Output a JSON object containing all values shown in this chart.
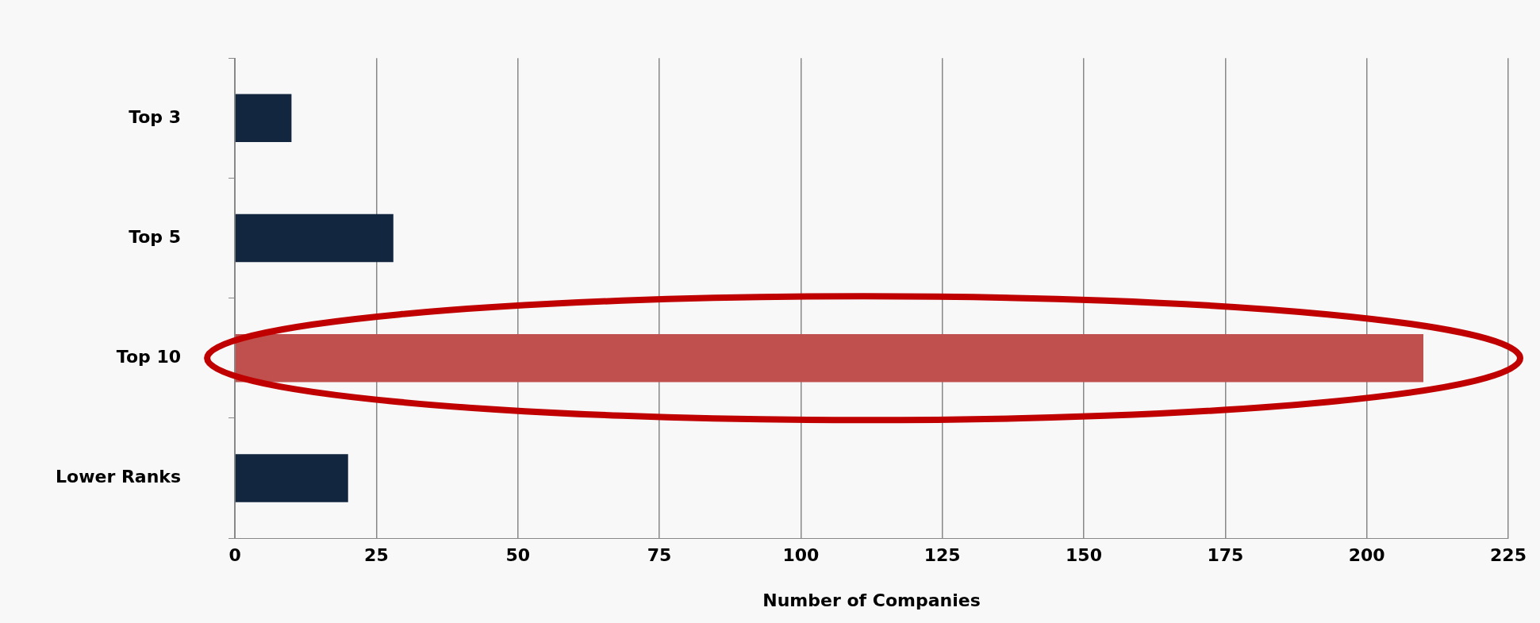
{
  "chart_data": {
    "type": "bar",
    "orientation": "horizontal",
    "xlabel": "Number of Companies",
    "categories": [
      "Top 3",
      "Top 5",
      "Top 10",
      "Lower Ranks"
    ],
    "values": [
      10,
      28,
      210,
      20
    ],
    "colors": [
      "#12263f",
      "#12263f",
      "#c0504d",
      "#12263f"
    ],
    "xlim": [
      0,
      225
    ],
    "xticks": [
      0,
      25,
      50,
      75,
      100,
      125,
      150,
      175,
      200,
      225
    ],
    "grid": "x",
    "legend": false
  }
}
